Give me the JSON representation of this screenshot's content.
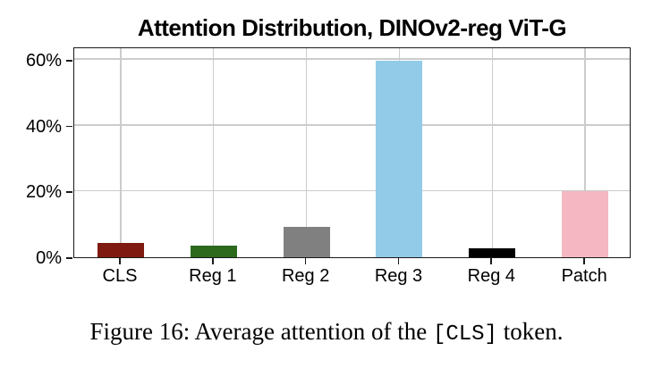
{
  "figure": {
    "caption": {
      "prefix": "Figure 16:  Average attention of the ",
      "code": "[CLS]",
      "suffix": " token."
    }
  },
  "chart_data": {
    "type": "bar",
    "title": "Attention Distribution, DINOv2-reg ViT-G",
    "categories": [
      "CLS",
      "Reg 1",
      "Reg 2",
      "Reg 3",
      "Reg 4",
      "Patch"
    ],
    "values": [
      4.4,
      3.4,
      9.3,
      59.8,
      2.8,
      20.0
    ],
    "unit": "%",
    "bar_colors": [
      "#7f1a10",
      "#2d6a1e",
      "#808080",
      "#92cbe8",
      "#000000",
      "#f5b8c3"
    ],
    "xlabel": "",
    "ylabel": "",
    "ylim": [
      0,
      64
    ],
    "yticks": [
      {
        "value": 0,
        "label": "0%"
      },
      {
        "value": 20,
        "label": "20%"
      },
      {
        "value": 40,
        "label": "40%"
      },
      {
        "value": 60,
        "label": "60%"
      }
    ],
    "grid": true,
    "gridline_color": "#cccccc",
    "axis_color": "#1a1a1a",
    "legend": null
  }
}
